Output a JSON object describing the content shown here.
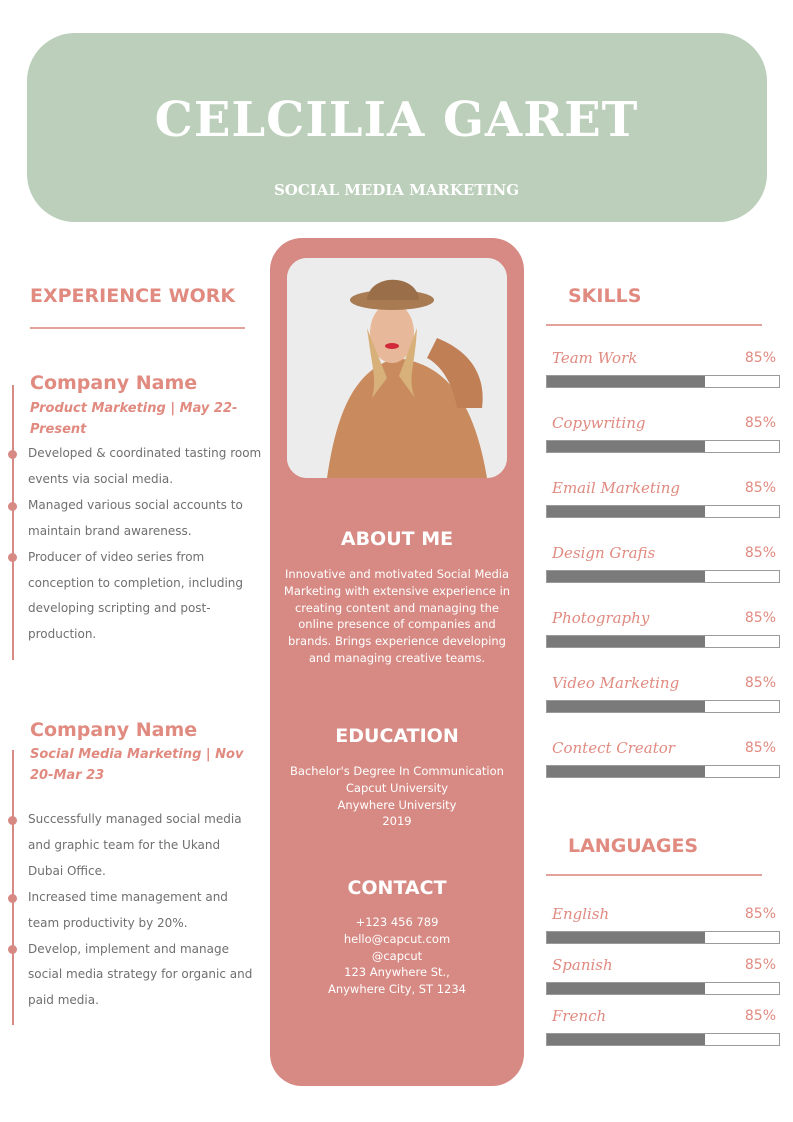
{
  "header": {
    "name": "CELCILIA GARET",
    "role": "SOCIAL MEDIA MARKETING"
  },
  "experience": {
    "title": "EXPERIENCE WORK",
    "jobs": [
      {
        "company": "Company Name",
        "position": "Product Marketing | May 22-Present",
        "bullets": [
          "Developed & coordinated tasting room events via social media.",
          "Managed various social accounts to maintain brand awareness.",
          "Producer of video series from conception to completion, including developing scripting and post-production."
        ]
      },
      {
        "company": "Company Name",
        "position": "Social Media Marketing | Nov 20-Mar 23",
        "bullets": [
          "Successfully managed social media and graphic team for the Ukand Dubai Office.",
          "Increased time management and team productivity by 20%.",
          "Develop, implement and manage social media strategy for organic and paid media."
        ]
      }
    ]
  },
  "about": {
    "title": "ABOUT ME",
    "text": "Innovative and motivated Social Media Marketing with extensive experience in creating content and managing the online presence of companies and brands. Brings experience developing and managing creative teams."
  },
  "education": {
    "title": "EDUCATION",
    "lines": [
      "Bachelor's Degree In Communication",
      "Capcut University",
      "Anywhere University",
      "2019"
    ]
  },
  "contact": {
    "title": "CONTACT",
    "lines": [
      "+123  456 789",
      "hello@capcut.com",
      "@capcut",
      "123 Anywhere St.,",
      "Anywhere City, ST 1234"
    ]
  },
  "skills": {
    "title": "SKILLS",
    "items": [
      {
        "label": "Team Work",
        "percent": "85%",
        "fill": 68
      },
      {
        "label": "Copywriting",
        "percent": "85%",
        "fill": 68
      },
      {
        "label": "Email Marketing",
        "percent": "85%",
        "fill": 68
      },
      {
        "label": "Design Grafis",
        "percent": "85%",
        "fill": 68
      },
      {
        "label": "Photography",
        "percent": "85%",
        "fill": 68
      },
      {
        "label": "Video Marketing",
        "percent": "85%",
        "fill": 68
      },
      {
        "label": "Contect Creator",
        "percent": "85%",
        "fill": 68
      }
    ]
  },
  "languages": {
    "title": "LANGUAGES",
    "items": [
      {
        "label": "English",
        "percent": "85%",
        "fill": 68
      },
      {
        "label": "Spanish",
        "percent": "85%",
        "fill": 68
      },
      {
        "label": "French",
        "percent": "85%",
        "fill": 68
      }
    ]
  },
  "colors": {
    "header_bg": "#bccfbb",
    "accent": "#d78a84",
    "accent_text": "#e08a80",
    "bar": "#7a7a7a"
  }
}
